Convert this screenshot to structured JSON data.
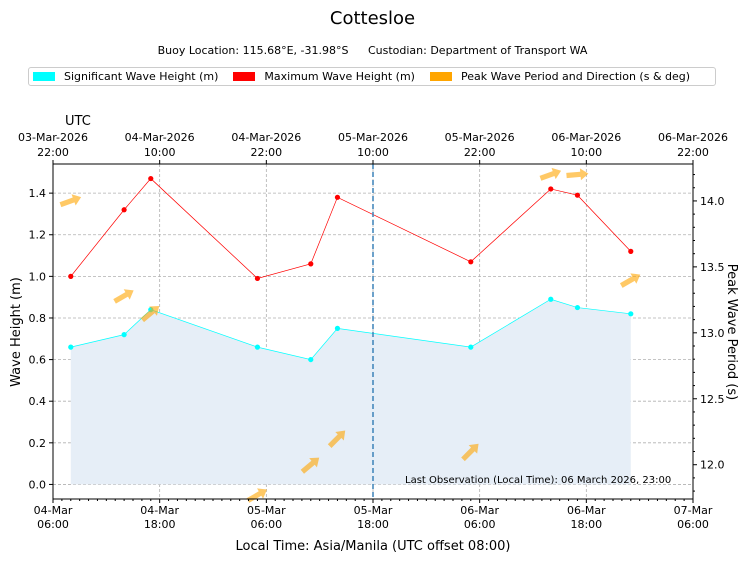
{
  "header": {
    "title": "Cottesloe",
    "location": "Buoy Location: 115.68°E, -31.98°S",
    "custodian": "Custodian: Department of Transport WA"
  },
  "legend": [
    {
      "label": "Significant Wave Height (m)",
      "color": "#00ffff"
    },
    {
      "label": "Maximum Wave Height (m)",
      "color": "#ff0000"
    },
    {
      "label": "Peak Wave Period and Direction (s & deg)",
      "color": "#ffa500"
    }
  ],
  "chart_data": {
    "type": "line",
    "title": "Cottesloe",
    "xlabel": "Local Time: Asia/Manila (UTC offset 08:00)",
    "ylabel": "Wave Height (m)",
    "y2label": "Peak Wave Period (s)",
    "utc_label": "UTC",
    "x_unit": "hours since 04-Mar 06:00 local",
    "xlim": [
      0,
      72
    ],
    "ylim": [
      -0.07,
      1.54
    ],
    "y2lim": [
      11.74,
      14.28
    ],
    "yticks": [
      0.0,
      0.2,
      0.4,
      0.6,
      0.8,
      1.0,
      1.2,
      1.4
    ],
    "y2ticks": [
      12.0,
      12.5,
      13.0,
      13.5,
      14.0
    ],
    "bottom_ticks": [
      {
        "x": 0,
        "l1": "04-Mar",
        "l2": "06:00"
      },
      {
        "x": 12,
        "l1": "04-Mar",
        "l2": "18:00"
      },
      {
        "x": 24,
        "l1": "05-Mar",
        "l2": "06:00"
      },
      {
        "x": 36,
        "l1": "05-Mar",
        "l2": "18:00"
      },
      {
        "x": 48,
        "l1": "06-Mar",
        "l2": "06:00"
      },
      {
        "x": 60,
        "l1": "06-Mar",
        "l2": "18:00"
      },
      {
        "x": 72,
        "l1": "07-Mar",
        "l2": "06:00"
      }
    ],
    "top_ticks": [
      {
        "x": 0,
        "l1": "03-Mar-2026",
        "l2": "22:00"
      },
      {
        "x": 12,
        "l1": "04-Mar-2026",
        "l2": "10:00"
      },
      {
        "x": 24,
        "l1": "04-Mar-2026",
        "l2": "22:00"
      },
      {
        "x": 36,
        "l1": "05-Mar-2026",
        "l2": "10:00"
      },
      {
        "x": 48,
        "l1": "05-Mar-2026",
        "l2": "22:00"
      },
      {
        "x": 60,
        "l1": "06-Mar-2026",
        "l2": "10:00"
      },
      {
        "x": 72,
        "l1": "06-Mar-2026",
        "l2": "22:00"
      }
    ],
    "now_marker_x": 36,
    "series": [
      {
        "name": "Significant Wave Height (m)",
        "color": "#00ffff",
        "x": [
          2,
          8,
          11,
          23,
          29,
          32,
          47,
          56,
          59,
          65
        ],
        "values": [
          0.66,
          0.72,
          0.84,
          0.66,
          0.6,
          0.75,
          0.66,
          0.89,
          0.85,
          0.82
        ]
      },
      {
        "name": "Maximum Wave Height (m)",
        "color": "#ff0000",
        "x": [
          2,
          8,
          11,
          23,
          29,
          32,
          47,
          56,
          59,
          65
        ],
        "values": [
          1.0,
          1.32,
          1.47,
          0.99,
          1.06,
          1.38,
          1.07,
          1.42,
          1.39,
          1.12
        ]
      }
    ],
    "peak_period": {
      "name": "Peak Wave Period and Direction (s & deg)",
      "color": "#ffa500",
      "points": [
        {
          "x": 2,
          "period": 14.0,
          "dir_deg": 20
        },
        {
          "x": 8,
          "period": 13.28,
          "dir_deg": 30
        },
        {
          "x": 11,
          "period": 13.15,
          "dir_deg": 40
        },
        {
          "x": 23,
          "period": 11.77,
          "dir_deg": 30
        },
        {
          "x": 29,
          "period": 12.0,
          "dir_deg": 40
        },
        {
          "x": 32,
          "period": 12.2,
          "dir_deg": 45
        },
        {
          "x": 47,
          "period": 12.1,
          "dir_deg": 45
        },
        {
          "x": 56,
          "period": 14.2,
          "dir_deg": 20
        },
        {
          "x": 59,
          "period": 14.2,
          "dir_deg": 5
        },
        {
          "x": 65,
          "period": 13.4,
          "dir_deg": 30
        }
      ]
    },
    "annotation": "Last Observation (Local Time): 06 March 2026, 23:00"
  }
}
